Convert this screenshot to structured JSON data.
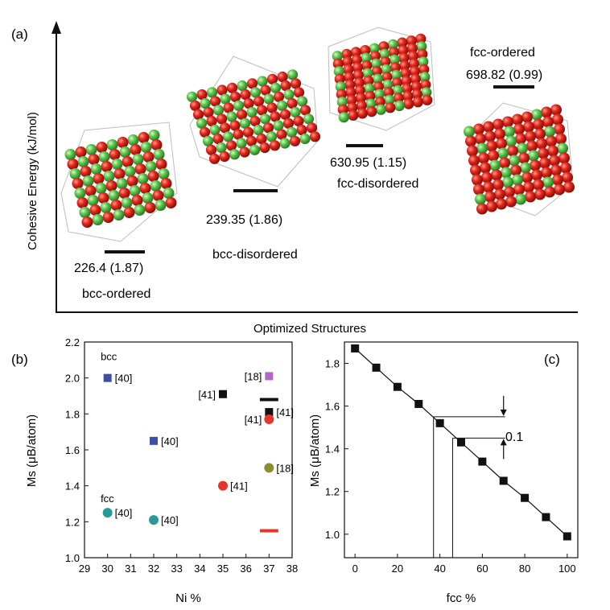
{
  "panel_a": {
    "label": "(a)",
    "ylabel": "Cohesive Energy (kJ/mol)",
    "xlabel": "Optimized Structures",
    "structures": [
      {
        "name": "bcc-ordered",
        "value": "226.4 (1.87)",
        "level": 226.4,
        "pattern": "alt"
      },
      {
        "name": "bcc-disordered",
        "value": "239.35 (1.86)",
        "level": 239.35,
        "pattern": "mix"
      },
      {
        "name": "fcc-disordered",
        "value": "630.95 (1.15)",
        "level": 630.95,
        "pattern": "band"
      },
      {
        "name": "fcc-ordered",
        "value": "698.82 (0.99)",
        "level": 698.82,
        "pattern": "core"
      }
    ]
  },
  "chart_data": [
    {
      "panel": "(b)",
      "type": "scatter",
      "xlabel": "Ni %",
      "ylabel": "Ms (μB/atom)",
      "xlim": [
        29,
        38
      ],
      "ylim": [
        1.0,
        2.2
      ],
      "xticks": [
        "29",
        "30",
        "31",
        "32",
        "33",
        "34",
        "35",
        "36",
        "37",
        "38"
      ],
      "yticks": [
        "1.0",
        "1.2",
        "1.4",
        "1.6",
        "1.8",
        "2.0",
        "2.2"
      ],
      "group_labels": [
        {
          "text": "bcc",
          "x": 29.7,
          "y": 2.1
        },
        {
          "text": "fcc",
          "x": 29.7,
          "y": 1.31
        }
      ],
      "points": [
        {
          "x": 30,
          "y": 2.0,
          "shape": "square",
          "color": "#3b4fa8",
          "label": "[40]",
          "label_side": "right"
        },
        {
          "x": 32,
          "y": 1.65,
          "shape": "square",
          "color": "#3b4fa8",
          "label": "[40]",
          "label_side": "right"
        },
        {
          "x": 35,
          "y": 1.91,
          "shape": "square",
          "color": "#111111",
          "label": "[41]",
          "label_side": "left"
        },
        {
          "x": 37,
          "y": 2.01,
          "shape": "square",
          "color": "#b565c4",
          "label": "[18]",
          "label_side": "left"
        },
        {
          "x": 37,
          "y": 1.81,
          "shape": "square",
          "color": "#111111",
          "label": "[41]",
          "label_side": "right"
        },
        {
          "x": 37,
          "y": 1.77,
          "shape": "circle",
          "color": "#e8352b",
          "label": "[41]",
          "label_side": "left"
        },
        {
          "x": 37,
          "y": 1.5,
          "shape": "circle",
          "color": "#8a8f2e",
          "label": "[18]",
          "label_side": "right"
        },
        {
          "x": 35,
          "y": 1.4,
          "shape": "circle",
          "color": "#e8352b",
          "label": "[41]",
          "label_side": "right"
        },
        {
          "x": 30,
          "y": 1.25,
          "shape": "circle",
          "color": "#2a9a96",
          "label": "[40]",
          "label_side": "right"
        },
        {
          "x": 32,
          "y": 1.21,
          "shape": "circle",
          "color": "#2a9a96",
          "label": "[40]",
          "label_side": "right"
        }
      ],
      "segments": [
        {
          "x1": 36.6,
          "x2": 37.4,
          "y": 1.88,
          "color": "#111111"
        },
        {
          "x1": 36.6,
          "x2": 37.4,
          "y": 1.15,
          "color": "#e8352b"
        }
      ]
    },
    {
      "panel": "(c)",
      "type": "line",
      "xlabel": "fcc %",
      "ylabel": "Ms (μB/atom)",
      "xlim": [
        -5,
        105
      ],
      "ylim": [
        0.89,
        1.9
      ],
      "xticks": [
        "0",
        "20",
        "40",
        "60",
        "80",
        "100"
      ],
      "yticks": [
        "1.0",
        "1.2",
        "1.4",
        "1.6",
        "1.8"
      ],
      "x": [
        0,
        10,
        20,
        30,
        40,
        50,
        60,
        70,
        80,
        90,
        100
      ],
      "y": [
        1.87,
        1.78,
        1.69,
        1.61,
        1.52,
        1.43,
        1.34,
        1.25,
        1.17,
        1.08,
        0.99
      ],
      "annotation": {
        "text": "0.1",
        "drop_lines_x": [
          37,
          46
        ],
        "levels": [
          1.55,
          1.45
        ],
        "arrow_x": 70
      }
    }
  ],
  "colors": {
    "ni_red": "#d6201a",
    "fe_green": "#52c24a",
    "frame": "#b5b5b5"
  }
}
